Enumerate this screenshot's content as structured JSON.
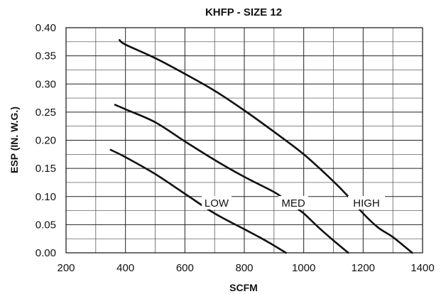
{
  "chart_data": {
    "type": "line",
    "title": "KHFP - SIZE 12",
    "xlabel": "SCFM",
    "ylabel": "ESP (IN. W.G.)",
    "xlim": [
      200,
      1400
    ],
    "ylim": [
      0,
      0.4
    ],
    "x_ticks": [
      "200",
      "400",
      "600",
      "800",
      "1000",
      "1200",
      "1400"
    ],
    "y_ticks": [
      "0.00",
      "0.05",
      "0.10",
      "0.15",
      "0.20",
      "0.25",
      "0.30",
      "0.35",
      "0.40"
    ],
    "grid": true,
    "series": [
      {
        "name": "LOW",
        "x": [
          350,
          400,
          500,
          600,
          700,
          800,
          850,
          900,
          940
        ],
        "y": [
          0.183,
          0.17,
          0.14,
          0.105,
          0.07,
          0.042,
          0.028,
          0.013,
          0.0
        ]
      },
      {
        "name": "MED",
        "x": [
          365,
          400,
          500,
          600,
          700,
          800,
          900,
          950,
          1000,
          1050,
          1100,
          1150
        ],
        "y": [
          0.263,
          0.255,
          0.232,
          0.198,
          0.165,
          0.135,
          0.108,
          0.09,
          0.07,
          0.045,
          0.022,
          0.0
        ]
      },
      {
        "name": "HIGH",
        "x": [
          380,
          400,
          500,
          600,
          700,
          800,
          900,
          1000,
          1100,
          1150,
          1200,
          1250,
          1300,
          1365
        ],
        "y": [
          0.378,
          0.37,
          0.346,
          0.318,
          0.288,
          0.253,
          0.215,
          0.175,
          0.127,
          0.1,
          0.07,
          0.045,
          0.028,
          0.0
        ]
      }
    ]
  }
}
